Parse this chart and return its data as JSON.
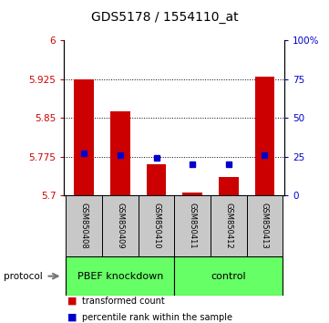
{
  "title": "GDS5178 / 1554110_at",
  "samples": [
    "GSM850408",
    "GSM850409",
    "GSM850410",
    "GSM850411",
    "GSM850412",
    "GSM850413"
  ],
  "bar_values": [
    5.925,
    5.863,
    5.76,
    5.705,
    5.735,
    5.93
  ],
  "baseline": 5.7,
  "percentile_values": [
    27,
    26,
    24,
    20,
    20,
    26
  ],
  "ylim_left": [
    5.7,
    6.0
  ],
  "ylim_right": [
    0,
    100
  ],
  "yticks_left": [
    5.7,
    5.775,
    5.85,
    5.925,
    6.0
  ],
  "ytick_labels_left": [
    "5.7",
    "5.775",
    "5.85",
    "5.925",
    "6"
  ],
  "yticks_right": [
    0,
    25,
    50,
    75,
    100
  ],
  "ytick_labels_right": [
    "0",
    "25",
    "50",
    "75",
    "100%"
  ],
  "dotted_yticks": [
    5.775,
    5.85,
    5.925
  ],
  "bar_color": "#cc0000",
  "blue_color": "#0000cc",
  "groups": [
    {
      "label": "PBEF knockdown",
      "samples_idx": [
        0,
        1,
        2
      ],
      "color": "#66ff66"
    },
    {
      "label": "control",
      "samples_idx": [
        3,
        4,
        5
      ],
      "color": "#66ff66"
    }
  ],
  "protocol_label": "protocol",
  "legend_bar_label": "transformed count",
  "legend_dot_label": "percentile rank within the sample",
  "sample_bg_color": "#c8c8c8",
  "bar_width": 0.55,
  "title_fontsize": 10,
  "tick_fontsize": 7.5,
  "axis_label_color_left": "#cc0000",
  "axis_label_color_right": "#0000cc",
  "sample_label_fontsize": 6,
  "proto_fontsize": 8
}
